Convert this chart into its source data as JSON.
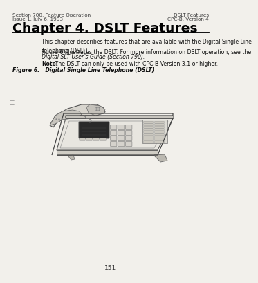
{
  "bg_color": "#f2f0eb",
  "header_left_line1": "Section 700, Feature Operation",
  "header_left_line2": "Issue 1. July 6, 1993",
  "header_right_line1": "DSLT Features",
  "header_right_line2": "CPC-B, Version 4",
  "chapter_title": "Chapter 4. DSLT Features",
  "para1": "This chapter describes features that are available with the Digital Single Line\nTelephone (DSLT).",
  "para2_normal": "Figure 6 illustrates the DSLT. For more information on DSLT operation, see the",
  "para2_italic": "Digital SLT User’s Guide (Section 790).",
  "note_bold": "Note:",
  "note_normal": " The DSLT can only be used with CPC-B Version 3.1 or higher.",
  "figure_caption": "Figure 6.   Digital Single Line Telephone (DSLT)",
  "page_number": "151",
  "margin_marks": [
    "—",
    "—"
  ],
  "header_fs": 5.2,
  "title_fs": 13.5,
  "body_fs": 5.6,
  "caption_fs": 5.6,
  "page_fs": 6.5
}
